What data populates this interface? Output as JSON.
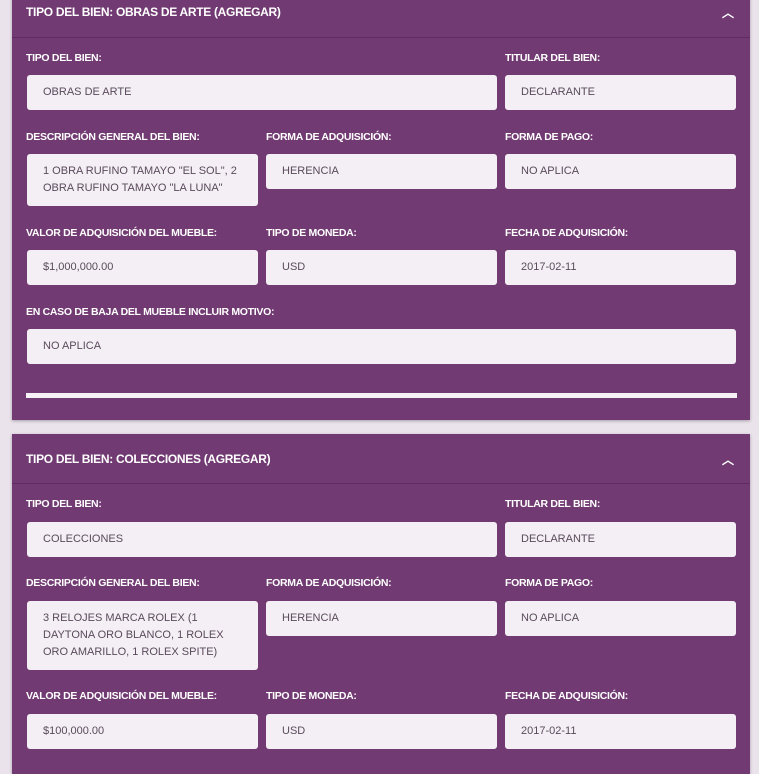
{
  "panels": [
    {
      "title": "TIPO DEL BIEN: OBRAS DE ARTE (AGREGAR)",
      "fields": {
        "tipo_label": "TIPO DEL BIEN:",
        "tipo": "OBRAS DE ARTE",
        "titular_label": "TITULAR DEL BIEN:",
        "titular": "DECLARANTE",
        "desc_label": "DESCRIPCIÓN GENERAL DEL BIEN:",
        "desc": "1 OBRA RUFINO TAMAYO \"EL SOL\", 2 OBRA RUFINO TAMAYO \"LA LUNA\"",
        "forma_adq_label": "FORMA DE ADQUISICIÓN:",
        "forma_adq": "HERENCIA",
        "forma_pago_label": "FORMA DE PAGO:",
        "forma_pago": "NO APLICA",
        "valor_label": "VALOR DE ADQUISICIÓN DEL MUEBLE:",
        "valor": "$1,000,000.00",
        "moneda_label": "TIPO DE MONEDA:",
        "moneda": "USD",
        "fecha_label": "FECHA DE ADQUISICIÓN:",
        "fecha": "2017-02-11",
        "baja_label": "EN CASO DE BAJA DEL MUEBLE INCLUIR MOTIVO:",
        "baja": "NO APLICA"
      }
    },
    {
      "title": "TIPO DEL BIEN: COLECCIONES (AGREGAR)",
      "fields": {
        "tipo_label": "TIPO DEL BIEN:",
        "tipo": "COLECCIONES",
        "titular_label": "TITULAR DEL BIEN:",
        "titular": "DECLARANTE",
        "desc_label": "DESCRIPCIÓN GENERAL DEL BIEN:",
        "desc": "3 RELOJES MARCA ROLEX (1 DAYTONA ORO BLANCO, 1 ROLEX ORO AMARILLO, 1 ROLEX SPITE)",
        "forma_adq_label": "FORMA DE ADQUISICIÓN:",
        "forma_adq": "HERENCIA",
        "forma_pago_label": "FORMA DE PAGO:",
        "forma_pago": "NO APLICA",
        "valor_label": "VALOR DE ADQUISICIÓN DEL MUEBLE:",
        "valor": "$100,000.00",
        "moneda_label": "TIPO DE MONEDA:",
        "moneda": "USD",
        "fecha_label": "FECHA DE ADQUISICIÓN:",
        "fecha": "2017-02-11"
      }
    }
  ],
  "icons": {
    "collapse": "chevron-up-icon"
  },
  "colors": {
    "panel": "#713a72",
    "background": "#ebe3ec",
    "field": "#f3eff4"
  }
}
